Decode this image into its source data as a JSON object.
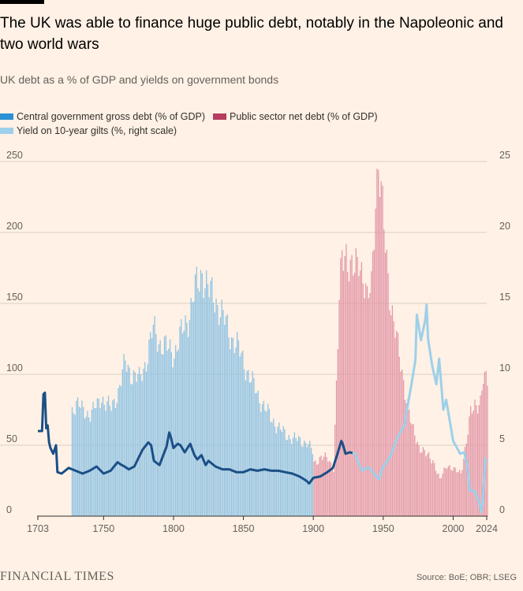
{
  "title": "The UK was able to finance huge public debt, notably in the Napoleonic and two world wars",
  "subtitle": "UK debt as a % of GDP and yields on government bonds",
  "legend": {
    "gross_debt": "Central government gross debt (% of GDP)",
    "net_debt": "Public sector net debt (% of GDP)",
    "yield": "Yield on 10-year gilts (%, right scale)"
  },
  "colors": {
    "gross_debt": "#2a91d4",
    "gross_debt_bars": "#8fc3e3",
    "net_debt": "#b53e60",
    "net_debt_bars": "#e398a8",
    "yield_early": "#1b4f86",
    "yield_late": "#9dd0ea",
    "background": "#fff1e5"
  },
  "footer": {
    "brand": "FINANCIAL TIMES",
    "source": "Source: BoE; OBR; LSEG"
  },
  "chart_data": {
    "type": "bar",
    "x_ticks": [
      "1703",
      "1750",
      "1800",
      "1850",
      "1900",
      "1950",
      "2000",
      "2024"
    ],
    "x_range": [
      1703,
      2024
    ],
    "y_left_ticks": [
      "0",
      "50",
      "100",
      "150",
      "200",
      "250"
    ],
    "y_left_range": [
      0,
      250
    ],
    "y_right_ticks": [
      "0",
      "5",
      "10",
      "15",
      "20",
      "25"
    ],
    "y_right_range": [
      0,
      25
    ],
    "grid": true,
    "legend_position": "top-left",
    "series": [
      {
        "name": "Central government gross debt (% of GDP)",
        "kind": "bars",
        "axis": "left",
        "points": [
          [
            1727,
            75
          ],
          [
            1730,
            80
          ],
          [
            1735,
            74
          ],
          [
            1740,
            72
          ],
          [
            1745,
            78
          ],
          [
            1748,
            85
          ],
          [
            1750,
            80
          ],
          [
            1755,
            76
          ],
          [
            1760,
            88
          ],
          [
            1763,
            100
          ],
          [
            1765,
            108
          ],
          [
            1770,
            100
          ],
          [
            1775,
            96
          ],
          [
            1780,
            110
          ],
          [
            1785,
            132
          ],
          [
            1790,
            122
          ],
          [
            1795,
            118
          ],
          [
            1800,
            115
          ],
          [
            1805,
            128
          ],
          [
            1810,
            140
          ],
          [
            1815,
            160
          ],
          [
            1818,
            165
          ],
          [
            1820,
            173
          ],
          [
            1825,
            158
          ],
          [
            1830,
            152
          ],
          [
            1835,
            140
          ],
          [
            1840,
            128
          ],
          [
            1845,
            120
          ],
          [
            1850,
            108
          ],
          [
            1855,
            96
          ],
          [
            1860,
            85
          ],
          [
            1865,
            76
          ],
          [
            1870,
            68
          ],
          [
            1875,
            62
          ],
          [
            1880,
            57
          ],
          [
            1885,
            55
          ],
          [
            1890,
            53
          ],
          [
            1895,
            52
          ],
          [
            1899,
            45
          ]
        ]
      },
      {
        "name": "Public sector net debt (% of GDP)",
        "kind": "bars",
        "axis": "left",
        "points": [
          [
            1900,
            37
          ],
          [
            1905,
            42
          ],
          [
            1910,
            40
          ],
          [
            1914,
            34
          ],
          [
            1916,
            92
          ],
          [
            1918,
            150
          ],
          [
            1920,
            182
          ],
          [
            1923,
            188
          ],
          [
            1926,
            175
          ],
          [
            1929,
            170
          ],
          [
            1932,
            183
          ],
          [
            1935,
            172
          ],
          [
            1938,
            150
          ],
          [
            1941,
            162
          ],
          [
            1944,
            228
          ],
          [
            1946,
            250
          ],
          [
            1948,
            225
          ],
          [
            1951,
            190
          ],
          [
            1955,
            150
          ],
          [
            1960,
            118
          ],
          [
            1965,
            90
          ],
          [
            1970,
            62
          ],
          [
            1975,
            50
          ],
          [
            1980,
            43
          ],
          [
            1985,
            40
          ],
          [
            1990,
            25
          ],
          [
            1995,
            37
          ],
          [
            2000,
            32
          ],
          [
            2005,
            31
          ],
          [
            2009,
            52
          ],
          [
            2012,
            72
          ],
          [
            2015,
            80
          ],
          [
            2019,
            80
          ],
          [
            2021,
            95
          ],
          [
            2024,
            96
          ]
        ]
      },
      {
        "name": "Yield on 10-year gilts (%, right scale)",
        "kind": "line",
        "axis": "right",
        "points": [
          [
            1703,
            6.0
          ],
          [
            1706,
            6.0
          ],
          [
            1707,
            8.6
          ],
          [
            1708,
            8.7
          ],
          [
            1709,
            6.2
          ],
          [
            1710,
            6.4
          ],
          [
            1711,
            5.2
          ],
          [
            1712,
            4.8
          ],
          [
            1714,
            4.4
          ],
          [
            1716,
            5.0
          ],
          [
            1717,
            3.1
          ],
          [
            1720,
            3.0
          ],
          [
            1725,
            3.4
          ],
          [
            1730,
            3.2
          ],
          [
            1735,
            3.0
          ],
          [
            1740,
            3.2
          ],
          [
            1745,
            3.5
          ],
          [
            1750,
            3.0
          ],
          [
            1755,
            3.2
          ],
          [
            1760,
            3.8
          ],
          [
            1763,
            3.6
          ],
          [
            1765,
            3.5
          ],
          [
            1768,
            3.3
          ],
          [
            1772,
            3.5
          ],
          [
            1778,
            4.7
          ],
          [
            1782,
            5.2
          ],
          [
            1784,
            5.0
          ],
          [
            1786,
            3.9
          ],
          [
            1790,
            3.6
          ],
          [
            1795,
            4.9
          ],
          [
            1797,
            5.9
          ],
          [
            1798,
            5.6
          ],
          [
            1800,
            4.8
          ],
          [
            1803,
            5.1
          ],
          [
            1805,
            5.0
          ],
          [
            1808,
            4.5
          ],
          [
            1812,
            5.1
          ],
          [
            1815,
            4.3
          ],
          [
            1817,
            4.0
          ],
          [
            1820,
            4.3
          ],
          [
            1823,
            3.6
          ],
          [
            1825,
            3.9
          ],
          [
            1830,
            3.5
          ],
          [
            1835,
            3.3
          ],
          [
            1840,
            3.3
          ],
          [
            1845,
            3.1
          ],
          [
            1850,
            3.1
          ],
          [
            1855,
            3.3
          ],
          [
            1860,
            3.2
          ],
          [
            1865,
            3.3
          ],
          [
            1870,
            3.2
          ],
          [
            1875,
            3.2
          ],
          [
            1880,
            3.1
          ],
          [
            1885,
            3.0
          ],
          [
            1890,
            2.8
          ],
          [
            1895,
            2.5
          ],
          [
            1897,
            2.3
          ],
          [
            1900,
            2.7
          ],
          [
            1905,
            2.8
          ],
          [
            1910,
            3.1
          ],
          [
            1914,
            3.4
          ],
          [
            1917,
            4.3
          ],
          [
            1920,
            5.3
          ],
          [
            1921,
            5.1
          ],
          [
            1923,
            4.4
          ],
          [
            1926,
            4.5
          ],
          [
            1930,
            4.4
          ],
          [
            1932,
            3.8
          ],
          [
            1935,
            3.2
          ],
          [
            1938,
            3.4
          ],
          [
            1940,
            3.4
          ],
          [
            1945,
            2.8
          ],
          [
            1947,
            2.6
          ],
          [
            1950,
            3.5
          ],
          [
            1955,
            4.2
          ],
          [
            1960,
            5.5
          ],
          [
            1965,
            6.4
          ],
          [
            1970,
            9.2
          ],
          [
            1973,
            11.0
          ],
          [
            1974,
            14.2
          ],
          [
            1977,
            12.4
          ],
          [
            1980,
            13.8
          ],
          [
            1981,
            14.9
          ],
          [
            1982,
            12.5
          ],
          [
            1985,
            10.6
          ],
          [
            1988,
            9.3
          ],
          [
            1990,
            11.1
          ],
          [
            1993,
            7.5
          ],
          [
            1995,
            8.2
          ],
          [
            2000,
            5.3
          ],
          [
            2005,
            4.4
          ],
          [
            2008,
            4.5
          ],
          [
            2010,
            3.6
          ],
          [
            2012,
            1.8
          ],
          [
            2015,
            1.8
          ],
          [
            2019,
            0.9
          ],
          [
            2020,
            0.3
          ],
          [
            2021,
            0.8
          ],
          [
            2022,
            2.4
          ],
          [
            2023,
            4.0
          ],
          [
            2024,
            4.1
          ]
        ]
      }
    ]
  }
}
